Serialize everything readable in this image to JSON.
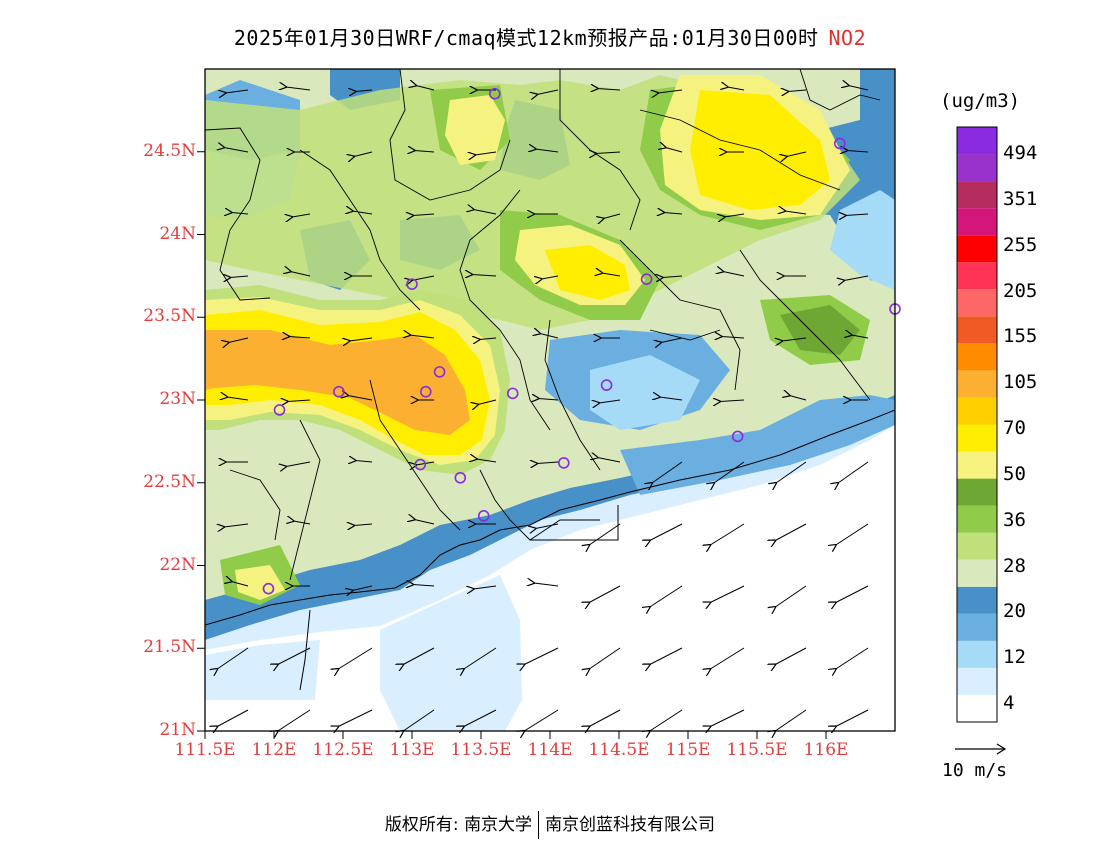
{
  "header": {
    "title": "2025年01月30日WRF/cmaq模式12km预报产品:01月30日00时",
    "pollutant": "NO2"
  },
  "axes": {
    "lat_labels": [
      "24.5N",
      "24N",
      "23.5N",
      "23N",
      "22.5N",
      "22N",
      "21.5N",
      "21N"
    ],
    "lon_labels": [
      "111.5E",
      "112E",
      "112.5E",
      "113E",
      "113.5E",
      "114E",
      "114.5E",
      "115E",
      "115.5E",
      "116E"
    ]
  },
  "legend": {
    "unit": "(ug/m3)",
    "labels": [
      "494",
      "351",
      "255",
      "205",
      "155",
      "105",
      "70",
      "50",
      "36",
      "28",
      "20",
      "12",
      "4"
    ],
    "colors": [
      "#ffffff",
      "#d9efff",
      "#a6dbf7",
      "#6baee0",
      "#4890c8",
      "#d9e9bd",
      "#bfe07a",
      "#90cc4a",
      "#6ea733",
      "#f5f280",
      "#ffee00",
      "#ffd000",
      "#fbb032",
      "#ff8c00",
      "#f25a24",
      "#ff6666",
      "#ff3355",
      "#ff0000",
      "#d4167a",
      "#b52d5e",
      "#9932cc",
      "#8a2be2"
    ]
  },
  "wind": {
    "ref_label": "10 m/s"
  },
  "footer": {
    "copyright_label": "版权所有:",
    "owner1": "南京大学",
    "owner2": "南京创蓝科技有限公司"
  },
  "chart_data": {
    "type": "heatmap",
    "title": "2025年01月30日WRF/cmaq模式12km预报产品:01月30日00时 NO2",
    "xlabel": "",
    "ylabel": "",
    "xlim": [
      111.5,
      116.5
    ],
    "ylim": [
      21.0,
      25.0
    ],
    "x_ticks": [
      111.5,
      112,
      112.5,
      113,
      113.5,
      114,
      114.5,
      115,
      115.5,
      116
    ],
    "y_ticks": [
      21,
      21.5,
      22,
      22.5,
      23,
      23.5,
      24,
      24.5
    ],
    "colorbar_levels": [
      4,
      12,
      20,
      28,
      36,
      50,
      70,
      105,
      155,
      205,
      255,
      351,
      494
    ],
    "stations": [
      {
        "lon": 113.6,
        "lat": 24.85
      },
      {
        "lon": 116.1,
        "lat": 24.55
      },
      {
        "lon": 113.0,
        "lat": 23.7
      },
      {
        "lon": 114.7,
        "lat": 23.73
      },
      {
        "lon": 116.5,
        "lat": 23.55
      },
      {
        "lon": 113.2,
        "lat": 23.17
      },
      {
        "lon": 113.1,
        "lat": 23.05
      },
      {
        "lon": 113.73,
        "lat": 23.04
      },
      {
        "lon": 114.41,
        "lat": 23.09
      },
      {
        "lon": 112.47,
        "lat": 23.05
      },
      {
        "lon": 112.04,
        "lat": 22.94
      },
      {
        "lon": 113.06,
        "lat": 22.61
      },
      {
        "lon": 113.35,
        "lat": 22.53
      },
      {
        "lon": 114.1,
        "lat": 22.62
      },
      {
        "lon": 115.36,
        "lat": 22.78
      },
      {
        "lon": 113.52,
        "lat": 22.3
      },
      {
        "lon": 111.96,
        "lat": 21.86
      }
    ]
  }
}
